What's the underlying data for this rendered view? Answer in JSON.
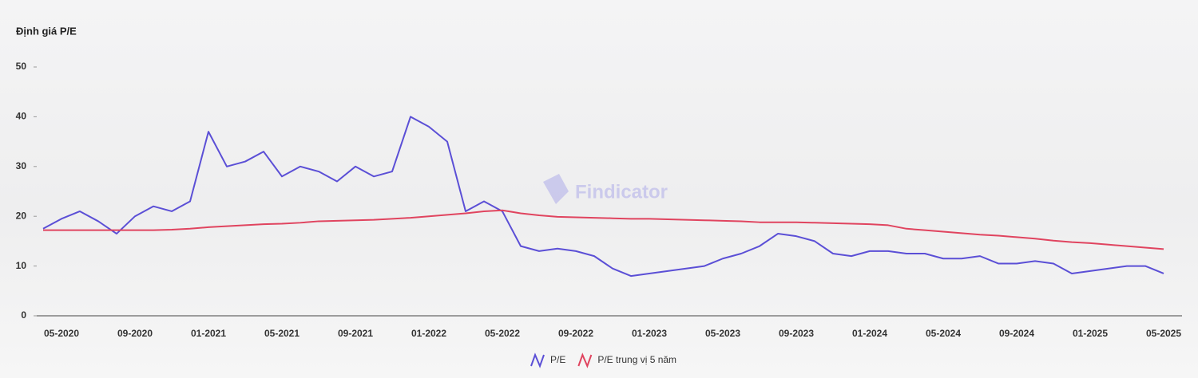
{
  "chart_data": {
    "type": "line",
    "title": "Định giá P/E",
    "watermark": "Findicator",
    "categories": [
      null,
      "05-2020",
      null,
      null,
      null,
      "09-2020",
      null,
      null,
      null,
      "01-2021",
      null,
      null,
      null,
      "05-2021",
      null,
      null,
      null,
      "09-2021",
      null,
      null,
      null,
      "01-2022",
      null,
      null,
      null,
      "05-2022",
      null,
      null,
      null,
      "09-2022",
      null,
      null,
      null,
      "01-2023",
      null,
      null,
      null,
      "05-2023",
      null,
      null,
      null,
      "09-2023",
      null,
      null,
      null,
      "01-2024",
      null,
      null,
      null,
      "05-2024",
      null,
      null,
      null,
      "09-2024",
      null,
      null,
      null,
      "01-2025",
      null,
      null,
      null,
      "05-2025"
    ],
    "series": [
      {
        "name": "P/E",
        "color": "#5b4fd6",
        "values": [
          17.5,
          19.5,
          21,
          19,
          16.5,
          20,
          22,
          21,
          23,
          37,
          30,
          31,
          33,
          28,
          30,
          29,
          27,
          30,
          28,
          29,
          40,
          38,
          35,
          21,
          23,
          21,
          14,
          13,
          13.5,
          13,
          12,
          9.5,
          8,
          8.5,
          9,
          9.5,
          10,
          11.5,
          12.5,
          14,
          16.5,
          16,
          15,
          12.5,
          12,
          13,
          13,
          12.5,
          12.5,
          11.5,
          11.5,
          12,
          10.5,
          10.5,
          11,
          10.5,
          8.5,
          9,
          9.5,
          10,
          10,
          8.5
        ]
      },
      {
        "name": "P/E trung vị 5 năm",
        "color": "#e0445f",
        "values": [
          17.2,
          17.2,
          17.2,
          17.2,
          17.2,
          17.2,
          17.2,
          17.3,
          17.5,
          17.8,
          18,
          18.2,
          18.4,
          18.5,
          18.7,
          19,
          19.1,
          19.2,
          19.3,
          19.5,
          19.7,
          20,
          20.3,
          20.6,
          21,
          21.2,
          20.6,
          20.2,
          19.9,
          19.8,
          19.7,
          19.6,
          19.5,
          19.5,
          19.4,
          19.3,
          19.2,
          19.1,
          19,
          18.8,
          18.8,
          18.8,
          18.7,
          18.6,
          18.5,
          18.4,
          18.2,
          17.5,
          17.2,
          16.9,
          16.6,
          16.3,
          16.1,
          15.8,
          15.5,
          15.1,
          14.8,
          14.6,
          14.3,
          14,
          13.7,
          13.4
        ]
      }
    ],
    "ylim": [
      0,
      50
    ],
    "yticks": [
      0,
      10,
      20,
      30,
      40,
      50
    ],
    "grid": false
  }
}
